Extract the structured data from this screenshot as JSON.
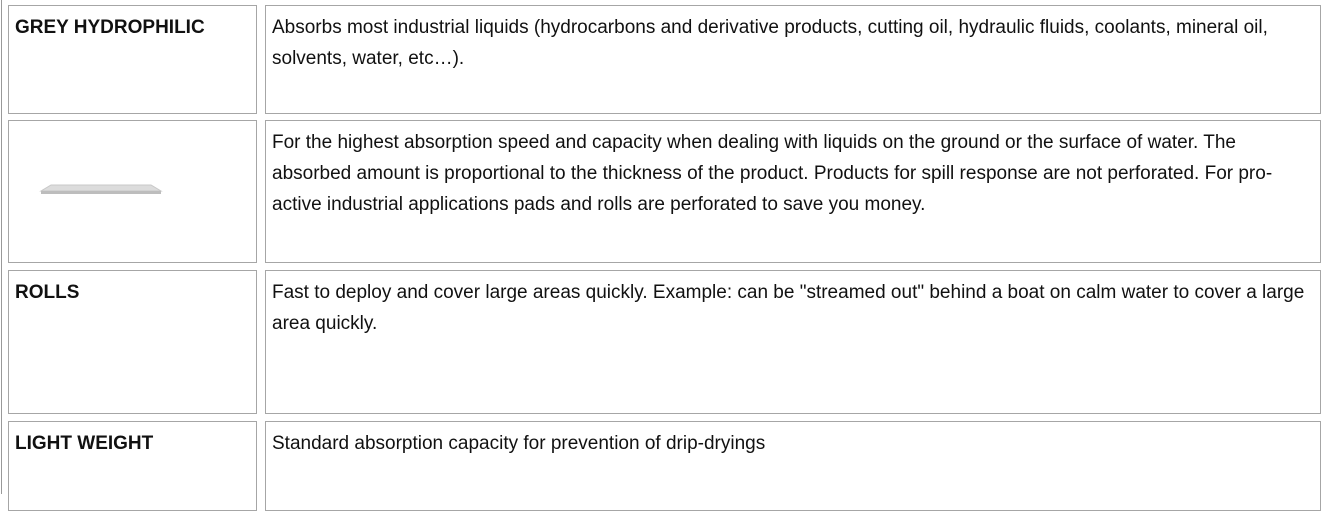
{
  "table": {
    "rows": [
      {
        "label": "GREY HYDROPHILIC",
        "description": "Absorbs most industrial liquids (hydrocarbons and derivative products, cutting oil, hydraulic fluids, coolants, mineral oil, solvents, water, etc…)."
      },
      {
        "description": "For the highest absorption speed and capacity when dealing with liquids on the ground or the surface of water. The absorbed amount is proportional to the thickness of the product. Products for spill response are not perforated. For pro-active industrial applications pads and rolls are perforated to save you money."
      },
      {
        "label": "ROLLS",
        "description": "Fast to deploy and cover large areas quickly. Example: can be \"streamed out\" behind a boat on calm water to cover a large area quickly."
      },
      {
        "label": "LIGHT WEIGHT",
        "description": "Standard absorption capacity for prevention of drip-dryings"
      }
    ]
  }
}
